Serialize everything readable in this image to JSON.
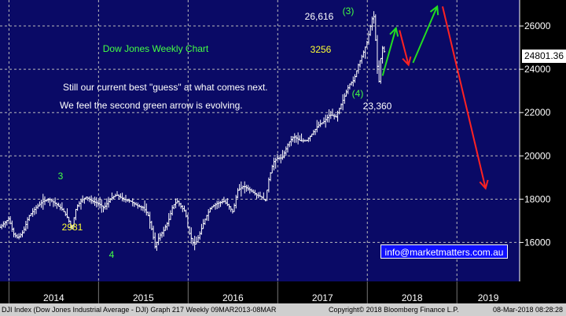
{
  "chart_data": {
    "type": "bar",
    "subtype": "ohlc-weekly",
    "title": "Dow Jones Weekly Chart",
    "security": "DJI Index (Dow Jones Industrial Average - DJI) Graph 217 Weekly 09MAR2013-08MAR",
    "y_axis": {
      "side": "right",
      "ticks": [
        16000,
        18000,
        20000,
        22000,
        24000,
        26000
      ],
      "ylim": [
        14200,
        27200
      ]
    },
    "x_axis": {
      "labels": [
        "2014",
        "2015",
        "2016",
        "2017",
        "2018",
        "2019"
      ],
      "xlim": [
        2013.9,
        2019.7
      ]
    },
    "grid": true,
    "last_price": "24801.36",
    "price_path": [
      [
        2013.9,
        16700
      ],
      [
        2014.0,
        17100
      ],
      [
        2014.05,
        16400
      ],
      [
        2014.1,
        16200
      ],
      [
        2014.16,
        16500
      ],
      [
        2014.22,
        17200
      ],
      [
        2014.3,
        17600
      ],
      [
        2014.38,
        17900
      ],
      [
        2014.45,
        18000
      ],
      [
        2014.52,
        17800
      ],
      [
        2014.6,
        17500
      ],
      [
        2014.66,
        17100
      ],
      [
        2014.7,
        16600
      ],
      [
        2014.75,
        17600
      ],
      [
        2014.8,
        17900
      ],
      [
        2014.86,
        18100
      ],
      [
        2014.93,
        17900
      ],
      [
        2015.0,
        17800
      ],
      [
        2015.06,
        17600
      ],
      [
        2015.13,
        18000
      ],
      [
        2015.2,
        18200
      ],
      [
        2015.28,
        18000
      ],
      [
        2015.36,
        17900
      ],
      [
        2015.43,
        17700
      ],
      [
        2015.5,
        17600
      ],
      [
        2015.55,
        17300
      ],
      [
        2015.6,
        16500
      ],
      [
        2015.63,
        15800
      ],
      [
        2015.68,
        16300
      ],
      [
        2015.72,
        16500
      ],
      [
        2015.78,
        17000
      ],
      [
        2015.83,
        17700
      ],
      [
        2015.88,
        17900
      ],
      [
        2015.93,
        17600
      ],
      [
        2015.97,
        17400
      ],
      [
        2016.0,
        16600
      ],
      [
        2016.05,
        16000
      ],
      [
        2016.08,
        15900
      ],
      [
        2016.13,
        16400
      ],
      [
        2016.18,
        17000
      ],
      [
        2016.25,
        17600
      ],
      [
        2016.32,
        17800
      ],
      [
        2016.4,
        17900
      ],
      [
        2016.45,
        17700
      ],
      [
        2016.5,
        17400
      ],
      [
        2016.55,
        18400
      ],
      [
        2016.62,
        18600
      ],
      [
        2016.7,
        18400
      ],
      [
        2016.76,
        18200
      ],
      [
        2016.82,
        18100
      ],
      [
        2016.86,
        17900
      ],
      [
        2016.9,
        18900
      ],
      [
        2016.95,
        19700
      ],
      [
        2017.0,
        19900
      ],
      [
        2017.05,
        19900
      ],
      [
        2017.12,
        20600
      ],
      [
        2017.18,
        20900
      ],
      [
        2017.25,
        20700
      ],
      [
        2017.32,
        20700
      ],
      [
        2017.38,
        21000
      ],
      [
        2017.45,
        21400
      ],
      [
        2017.52,
        21600
      ],
      [
        2017.58,
        21900
      ],
      [
        2017.65,
        21800
      ],
      [
        2017.7,
        22300
      ],
      [
        2017.75,
        22800
      ],
      [
        2017.8,
        23300
      ],
      [
        2017.85,
        23500
      ],
      [
        2017.9,
        24200
      ],
      [
        2017.95,
        24700
      ],
      [
        2018.0,
        25300
      ],
      [
        2018.04,
        26100
      ],
      [
        2018.07,
        26600
      ],
      [
        2018.09,
        25500
      ],
      [
        2018.11,
        24200
      ],
      [
        2018.13,
        23400
      ],
      [
        2018.15,
        24500
      ],
      [
        2018.17,
        25000
      ],
      [
        2018.19,
        24800
      ]
    ],
    "annotations": {
      "comment_line1": "Still our current best \"guess\" at what comes next.",
      "comment_line2": "We feel the second green arrow is evolving.",
      "wave_3_2014": "3",
      "wave_4_2015": "4",
      "low_2015": "2981",
      "high_label": "26,616",
      "wave_3_2018": "(3)",
      "wave_4_2018": "(4)",
      "drop_label": "3256",
      "low_2018": "23,360",
      "contact": "info@marketmatters.com.au"
    },
    "projection_arrows": [
      {
        "color": "#22dd22",
        "from": [
          2018.17,
          23700
        ],
        "to": [
          2018.32,
          25900
        ]
      },
      {
        "color": "#ff2222",
        "from": [
          2018.36,
          25800
        ],
        "to": [
          2018.46,
          24200
        ]
      },
      {
        "color": "#22dd22",
        "from": [
          2018.51,
          24300
        ],
        "to": [
          2018.78,
          26900
        ]
      },
      {
        "color": "#ff2222",
        "from": [
          2018.84,
          26900
        ],
        "to": [
          2019.32,
          18500
        ]
      }
    ],
    "colors": {
      "background": "#0a0a66",
      "bars": "#ffffff",
      "grid": "#bbbbbb",
      "green": "#22dd22",
      "red": "#ff2222",
      "yellow": "#ffff33"
    }
  },
  "footer": {
    "left": "DJI Index (Dow Jones Industrial Average - DJI) Graph 217  Weekly 09MAR2013-08MAR",
    "center": "Copyright© 2018 Bloomberg Finance L.P.",
    "right": "08-Mar-2018 08:28:28"
  }
}
